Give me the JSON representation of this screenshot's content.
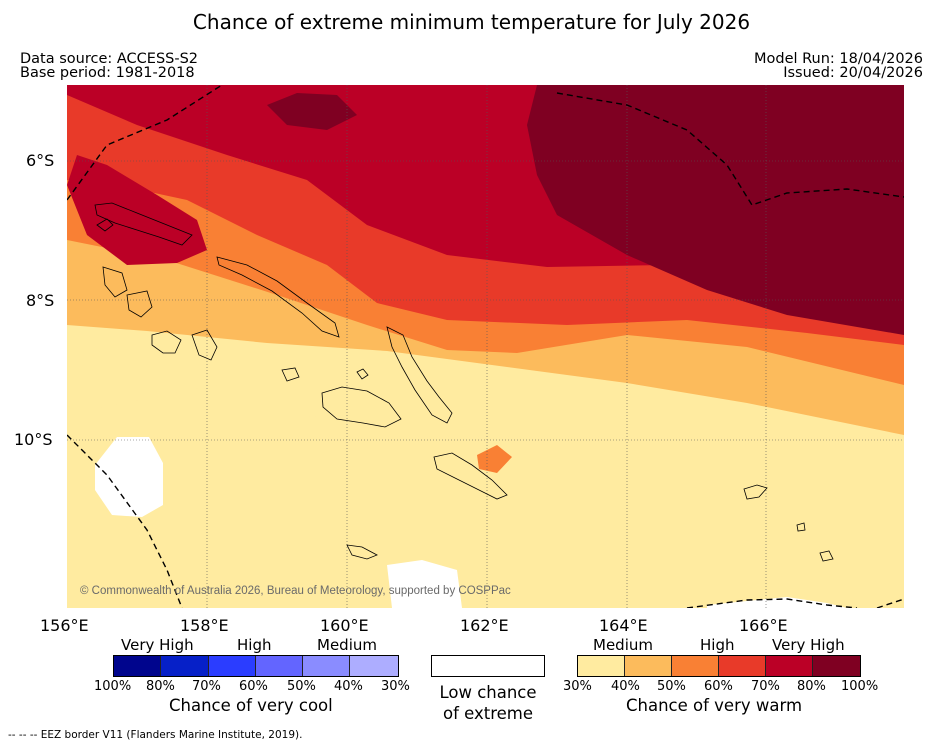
{
  "title": "Chance of extreme minimum temperature for July 2026",
  "header": {
    "data_source": "Data source: ACCESS-S2",
    "base_period": "Base period: 1981-2018",
    "model_run": "Model Run: 18/04/2026",
    "issued": "Issued: 20/04/2026"
  },
  "map": {
    "longitude_labels": [
      "156°E",
      "158°E",
      "160°E",
      "162°E",
      "164°E",
      "166°E"
    ],
    "latitude_labels": [
      "6°S",
      "8°S",
      "10°S"
    ],
    "copyright": "© Commonwealth of Australia 2026, Bureau of Meteorology, supported by COSPPac",
    "colors": {
      "very_high_warm_100": "#7f0022",
      "high_warm_80": "#bb0026",
      "high_warm_70": "#e83a29",
      "medium_warm_60": "#f98034",
      "medium_warm_50": "#fcbb5c",
      "medium_warm_40": "#ffeba0",
      "low_chance": "#ffffff"
    }
  },
  "legend": {
    "cool": {
      "heads": [
        "Very High",
        "High",
        "Medium"
      ],
      "ticks": [
        "100%",
        "80%",
        "70%",
        "60%",
        "50%",
        "40%",
        "30%"
      ],
      "caption": "Chance of very cool",
      "colors": [
        "#00058d",
        "#0620c8",
        "#2b3dff",
        "#6365ff",
        "#8a8cff",
        "#adadff"
      ]
    },
    "low": {
      "caption_line1": "Low chance",
      "caption_line2": "of extreme"
    },
    "warm": {
      "heads": [
        "Medium",
        "High",
        "Very High"
      ],
      "ticks": [
        "30%",
        "40%",
        "50%",
        "60%",
        "70%",
        "80%",
        "100%"
      ],
      "caption": "Chance of very warm",
      "colors": [
        "#ffeba0",
        "#fcbb5c",
        "#f98034",
        "#e83a29",
        "#bb0026",
        "#7f0022"
      ]
    }
  },
  "footer": "--  --  -- EEZ border V11 (Flanders Marine Institute, 2019)."
}
